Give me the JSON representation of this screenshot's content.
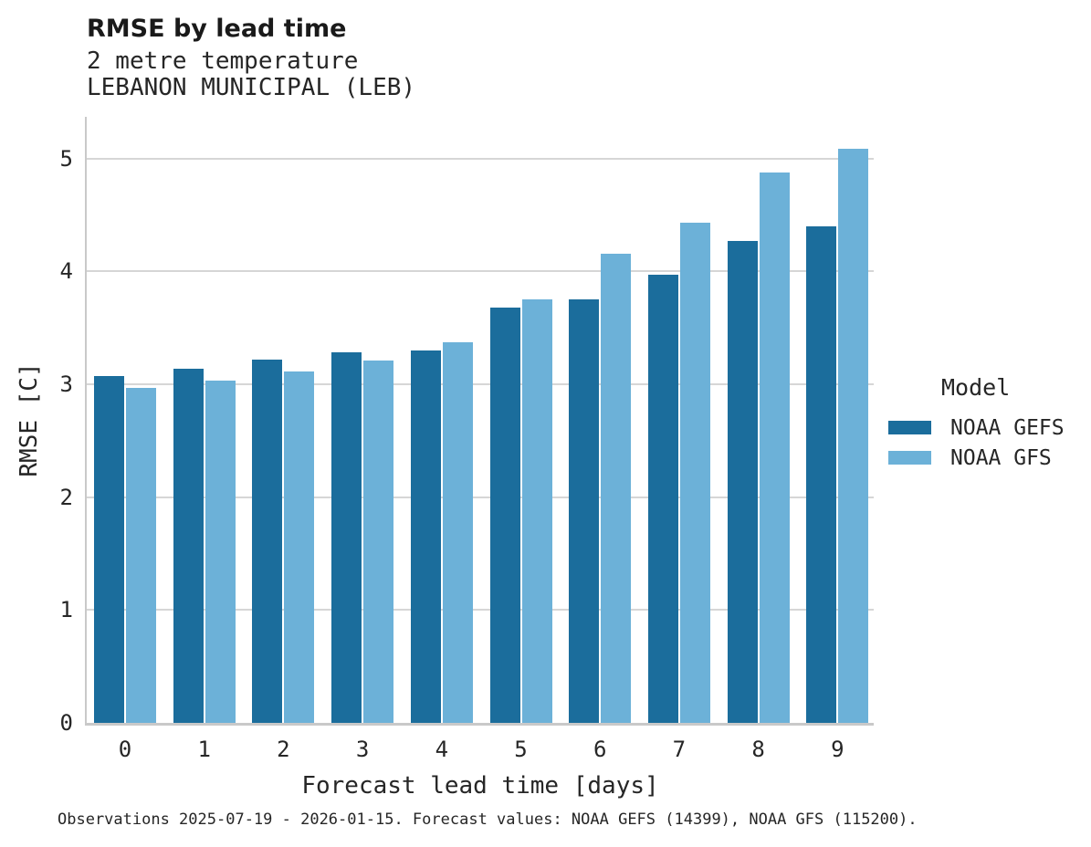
{
  "header": {
    "title": "RMSE by lead time",
    "subtitle_variable": "2 metre temperature",
    "subtitle_station": "LEBANON MUNICIPAL (LEB)"
  },
  "caption": "Observations 2025-07-19 - 2026-01-15. Forecast values: NOAA GEFS (14399), NOAA GFS (115200).",
  "legend": {
    "title": "Model",
    "entries": [
      {
        "label": "NOAA GEFS",
        "color": "#1b6d9c"
      },
      {
        "label": "NOAA GFS",
        "color": "#6cb1d8"
      }
    ]
  },
  "colors": {
    "gefs_bar": "#1b6d9c",
    "gfs_bar": "#6cb1d8",
    "gridline": "#d6d6d6",
    "spine": "#c9c9c9",
    "text": "#262626"
  },
  "chart_data": {
    "type": "bar",
    "title": "RMSE by lead time",
    "categories": [
      "0",
      "1",
      "2",
      "3",
      "4",
      "5",
      "6",
      "7",
      "8",
      "9"
    ],
    "series": [
      {
        "name": "NOAA GEFS",
        "color": "#1b6d9c",
        "values": [
          3.07,
          3.14,
          3.22,
          3.28,
          3.3,
          3.68,
          3.75,
          3.97,
          4.27,
          4.4
        ]
      },
      {
        "name": "NOAA GFS",
        "color": "#6cb1d8",
        "values": [
          2.97,
          3.03,
          3.11,
          3.21,
          3.37,
          3.75,
          4.16,
          4.43,
          4.88,
          5.09
        ]
      }
    ],
    "xlabel": "Forecast lead time [days]",
    "ylabel": "RMSE [C]",
    "ylim": [
      0,
      5.37
    ],
    "yticks": [
      0,
      1,
      2,
      3,
      4,
      5
    ],
    "grid": true,
    "legend_position": "right",
    "legend_title": "Model"
  }
}
